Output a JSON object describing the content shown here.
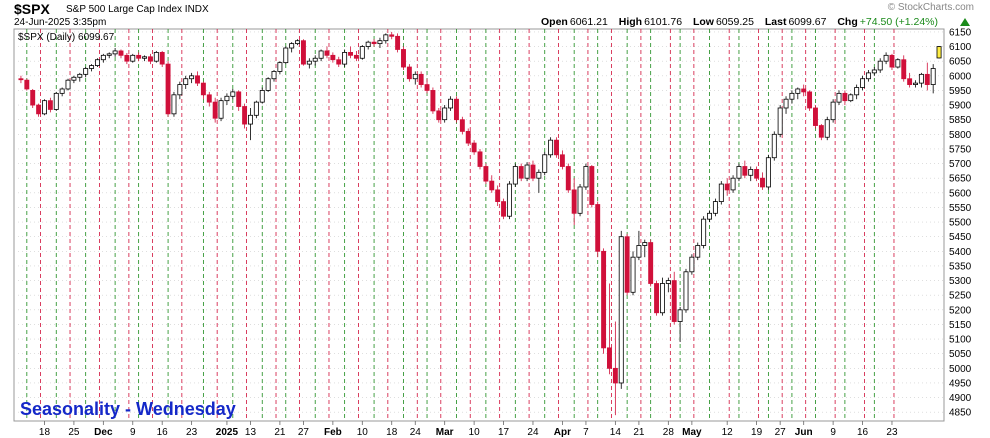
{
  "header": {
    "symbol": "$SPX",
    "name": "S&P 500 Large Cap Index",
    "exchange": "INDX",
    "date": "24-Jun-2025 3:35pm",
    "brand": "© StockCharts.com",
    "open_label": "Open",
    "open": "6061.21",
    "high_label": "High",
    "high": "6101.76",
    "low_label": "Low",
    "low": "6059.25",
    "last_label": "Last",
    "last": "6099.67",
    "chg_label": "Chg",
    "chg": "+74.50 (+1.24%)"
  },
  "legend": {
    "label": "$SPX (Daily) 6099.67"
  },
  "overlay": {
    "title": "Seasonality - Wednesday"
  },
  "colors": {
    "up": "#000000",
    "down": "#d0103a",
    "green_line": "#1a8a1a",
    "red_line": "#d0103a",
    "grid": "#cccccc",
    "title": "#1428c8",
    "last_box": "#ffee44"
  },
  "chart_data": {
    "type": "candlestick",
    "title": "",
    "xlabel": "",
    "ylabel": "",
    "ylim": [
      4820,
      6160
    ],
    "y_ticks": [
      4850,
      4900,
      4950,
      5000,
      5050,
      5100,
      5150,
      5200,
      5250,
      5300,
      5350,
      5400,
      5450,
      5500,
      5550,
      5600,
      5650,
      5700,
      5750,
      5800,
      5850,
      5900,
      5950,
      6000,
      6050,
      6100,
      6150
    ],
    "x_labels": [
      {
        "label": "18",
        "bold": false,
        "i": 4
      },
      {
        "label": "25",
        "bold": false,
        "i": 9
      },
      {
        "label": "Dec",
        "bold": true,
        "i": 14
      },
      {
        "label": "9",
        "bold": false,
        "i": 19
      },
      {
        "label": "16",
        "bold": false,
        "i": 24
      },
      {
        "label": "23",
        "bold": false,
        "i": 29
      },
      {
        "label": "2025",
        "bold": true,
        "i": 35
      },
      {
        "label": "13",
        "bold": false,
        "i": 39
      },
      {
        "label": "21",
        "bold": false,
        "i": 44
      },
      {
        "label": "27",
        "bold": false,
        "i": 48
      },
      {
        "label": "Feb",
        "bold": true,
        "i": 53
      },
      {
        "label": "10",
        "bold": false,
        "i": 58
      },
      {
        "label": "18",
        "bold": false,
        "i": 63
      },
      {
        "label": "24",
        "bold": false,
        "i": 67
      },
      {
        "label": "Mar",
        "bold": true,
        "i": 72
      },
      {
        "label": "10",
        "bold": false,
        "i": 77
      },
      {
        "label": "17",
        "bold": false,
        "i": 82
      },
      {
        "label": "24",
        "bold": false,
        "i": 87
      },
      {
        "label": "Apr",
        "bold": true,
        "i": 92
      },
      {
        "label": "7",
        "bold": false,
        "i": 96
      },
      {
        "label": "14",
        "bold": false,
        "i": 101
      },
      {
        "label": "21",
        "bold": false,
        "i": 105
      },
      {
        "label": "28",
        "bold": false,
        "i": 110
      },
      {
        "label": "May",
        "bold": true,
        "i": 114
      },
      {
        "label": "12",
        "bold": false,
        "i": 120
      },
      {
        "label": "19",
        "bold": false,
        "i": 125
      },
      {
        "label": "27",
        "bold": false,
        "i": 129
      },
      {
        "label": "Jun",
        "bold": true,
        "i": 133
      },
      {
        "label": "9",
        "bold": false,
        "i": 138
      },
      {
        "label": "16",
        "bold": false,
        "i": 143
      },
      {
        "label": "23",
        "bold": false,
        "i": 148
      }
    ],
    "green_lines": [
      1,
      6,
      11,
      16,
      20,
      25,
      31,
      36,
      41,
      45,
      50,
      55,
      60,
      65,
      69,
      74,
      79,
      84,
      89,
      94,
      98,
      103,
      107,
      112,
      117,
      122,
      127,
      131,
      135,
      140,
      145
    ],
    "red_lines": [
      3,
      8,
      13,
      18,
      22,
      27,
      33,
      38,
      43,
      47,
      52,
      57,
      62,
      67,
      71,
      76,
      81,
      86,
      91,
      96,
      100,
      105,
      110,
      114,
      120,
      125,
      129,
      133,
      138,
      143,
      148
    ],
    "series": [
      {
        "name": "$SPX",
        "type": "candlestick",
        "values": [
          [
            5990,
            6000,
            5975,
            5987
          ],
          [
            5985,
            5990,
            5950,
            5955
          ],
          [
            5950,
            5955,
            5890,
            5900
          ],
          [
            5900,
            5905,
            5860,
            5870
          ],
          [
            5870,
            5920,
            5865,
            5915
          ],
          [
            5915,
            5925,
            5875,
            5885
          ],
          [
            5885,
            5945,
            5880,
            5940
          ],
          [
            5940,
            5960,
            5930,
            5955
          ],
          [
            5955,
            5990,
            5950,
            5985
          ],
          [
            5985,
            6000,
            5975,
            5995
          ],
          [
            5995,
            6010,
            5980,
            6005
          ],
          [
            6005,
            6030,
            5995,
            6025
          ],
          [
            6025,
            6040,
            6015,
            6035
          ],
          [
            6035,
            6060,
            6030,
            6055
          ],
          [
            6055,
            6075,
            6045,
            6070
          ],
          [
            6070,
            6080,
            6060,
            6075
          ],
          [
            6075,
            6095,
            6065,
            6085
          ],
          [
            6085,
            6090,
            6060,
            6070
          ],
          [
            6070,
            6078,
            6040,
            6050
          ],
          [
            6050,
            6075,
            6045,
            6070
          ],
          [
            6070,
            6080,
            6050,
            6060
          ],
          [
            6060,
            6070,
            6050,
            6065
          ],
          [
            6065,
            6075,
            6040,
            6050
          ],
          [
            6050,
            6085,
            6045,
            6080
          ],
          [
            6080,
            6085,
            6030,
            6040
          ],
          [
            6040,
            6050,
            5860,
            5870
          ],
          [
            5870,
            5945,
            5860,
            5935
          ],
          [
            5935,
            5980,
            5920,
            5970
          ],
          [
            5970,
            6000,
            5955,
            5990
          ],
          [
            5990,
            6010,
            5975,
            6000
          ],
          [
            6000,
            6015,
            5965,
            5975
          ],
          [
            5975,
            5980,
            5920,
            5935
          ],
          [
            5935,
            5945,
            5895,
            5910
          ],
          [
            5910,
            5925,
            5840,
            5855
          ],
          [
            5855,
            5925,
            5845,
            5915
          ],
          [
            5915,
            5940,
            5900,
            5930
          ],
          [
            5930,
            5955,
            5920,
            5945
          ],
          [
            5945,
            5950,
            5880,
            5895
          ],
          [
            5895,
            5905,
            5820,
            5835
          ],
          [
            5835,
            5890,
            5780,
            5865
          ],
          [
            5865,
            5915,
            5855,
            5910
          ],
          [
            5910,
            5960,
            5905,
            5950
          ],
          [
            5950,
            5995,
            5945,
            5990
          ],
          [
            5990,
            6020,
            5980,
            6015
          ],
          [
            6015,
            6050,
            6005,
            6045
          ],
          [
            6045,
            6100,
            6040,
            6095
          ],
          [
            6095,
            6115,
            6080,
            6110
          ],
          [
            6110,
            6125,
            6105,
            6120
          ],
          [
            6120,
            6125,
            6035,
            6040
          ],
          [
            6040,
            6060,
            6025,
            6050
          ],
          [
            6050,
            6070,
            6035,
            6060
          ],
          [
            6060,
            6090,
            6050,
            6085
          ],
          [
            6085,
            6100,
            6060,
            6070
          ],
          [
            6070,
            6080,
            6045,
            6055
          ],
          [
            6055,
            6065,
            6030,
            6040
          ],
          [
            6040,
            6090,
            6030,
            6080
          ],
          [
            6080,
            6100,
            6060,
            6070
          ],
          [
            6070,
            6085,
            6050,
            6060
          ],
          [
            6060,
            6105,
            6055,
            6100
          ],
          [
            6100,
            6120,
            6090,
            6115
          ],
          [
            6115,
            6125,
            6100,
            6110
          ],
          [
            6110,
            6130,
            6095,
            6120
          ],
          [
            6120,
            6145,
            6110,
            6140
          ],
          [
            6140,
            6150,
            6125,
            6135
          ],
          [
            6135,
            6145,
            6080,
            6090
          ],
          [
            6090,
            6100,
            6020,
            6030
          ],
          [
            6030,
            6040,
            5980,
            5990
          ],
          [
            5990,
            6015,
            5970,
            6005
          ],
          [
            6005,
            6015,
            5960,
            5970
          ],
          [
            5970,
            5990,
            5940,
            5950
          ],
          [
            5950,
            5960,
            5870,
            5880
          ],
          [
            5880,
            5890,
            5840,
            5850
          ],
          [
            5850,
            5900,
            5840,
            5890
          ],
          [
            5890,
            5930,
            5880,
            5920
          ],
          [
            5920,
            5930,
            5840,
            5850
          ],
          [
            5850,
            5860,
            5800,
            5810
          ],
          [
            5810,
            5820,
            5760,
            5770
          ],
          [
            5770,
            5780,
            5730,
            5740
          ],
          [
            5740,
            5750,
            5680,
            5690
          ],
          [
            5690,
            5700,
            5630,
            5640
          ],
          [
            5640,
            5660,
            5600,
            5610
          ],
          [
            5610,
            5625,
            5555,
            5570
          ],
          [
            5570,
            5580,
            5510,
            5520
          ],
          [
            5520,
            5640,
            5510,
            5630
          ],
          [
            5630,
            5700,
            5620,
            5690
          ],
          [
            5690,
            5700,
            5640,
            5650
          ],
          [
            5650,
            5705,
            5640,
            5695
          ],
          [
            5695,
            5710,
            5640,
            5650
          ],
          [
            5650,
            5680,
            5600,
            5670
          ],
          [
            5670,
            5740,
            5660,
            5730
          ],
          [
            5730,
            5790,
            5720,
            5780
          ],
          [
            5780,
            5790,
            5720,
            5730
          ],
          [
            5730,
            5745,
            5680,
            5690
          ],
          [
            5690,
            5700,
            5600,
            5610
          ],
          [
            5610,
            5650,
            5490,
            5530
          ],
          [
            5530,
            5630,
            5520,
            5620
          ],
          [
            5620,
            5700,
            5610,
            5690
          ],
          [
            5690,
            5695,
            5550,
            5560
          ],
          [
            5560,
            5570,
            5380,
            5400
          ],
          [
            5400,
            5410,
            5050,
            5070
          ],
          [
            5070,
            5290,
            4980,
            5000
          ],
          [
            5000,
            5160,
            4840,
            4950
          ],
          [
            4950,
            5470,
            4930,
            5450
          ],
          [
            5450,
            5460,
            5250,
            5260
          ],
          [
            5260,
            5400,
            5250,
            5380
          ],
          [
            5380,
            5470,
            5370,
            5420
          ],
          [
            5420,
            5440,
            5380,
            5430
          ],
          [
            5430,
            5440,
            5280,
            5290
          ],
          [
            5290,
            5300,
            5180,
            5190
          ],
          [
            5190,
            5310,
            5180,
            5290
          ],
          [
            5290,
            5310,
            5260,
            5300
          ],
          [
            5300,
            5330,
            5150,
            5160
          ],
          [
            5160,
            5210,
            5090,
            5200
          ],
          [
            5200,
            5340,
            5190,
            5330
          ],
          [
            5330,
            5390,
            5320,
            5380
          ],
          [
            5380,
            5430,
            5370,
            5420
          ],
          [
            5420,
            5520,
            5410,
            5510
          ],
          [
            5510,
            5540,
            5500,
            5530
          ],
          [
            5530,
            5580,
            5520,
            5570
          ],
          [
            5570,
            5640,
            5560,
            5630
          ],
          [
            5630,
            5650,
            5590,
            5610
          ],
          [
            5610,
            5660,
            5600,
            5650
          ],
          [
            5650,
            5700,
            5640,
            5690
          ],
          [
            5690,
            5710,
            5650,
            5660
          ],
          [
            5660,
            5690,
            5640,
            5680
          ],
          [
            5680,
            5690,
            5640,
            5650
          ],
          [
            5650,
            5670,
            5610,
            5620
          ],
          [
            5620,
            5730,
            5610,
            5720
          ],
          [
            5720,
            5810,
            5710,
            5800
          ],
          [
            5800,
            5900,
            5790,
            5890
          ],
          [
            5890,
            5930,
            5870,
            5920
          ],
          [
            5920,
            5950,
            5905,
            5940
          ],
          [
            5940,
            5960,
            5920,
            5955
          ],
          [
            5955,
            5970,
            5930,
            5945
          ],
          [
            5945,
            5950,
            5880,
            5890
          ],
          [
            5890,
            5900,
            5820,
            5830
          ],
          [
            5830,
            5835,
            5780,
            5790
          ],
          [
            5790,
            5860,
            5780,
            5850
          ],
          [
            5850,
            5920,
            5840,
            5910
          ],
          [
            5910,
            5950,
            5900,
            5940
          ],
          [
            5940,
            5950,
            5900,
            5915
          ],
          [
            5915,
            5940,
            5910,
            5935
          ],
          [
            5935,
            5970,
            5920,
            5960
          ],
          [
            5960,
            6000,
            5950,
            5990
          ],
          [
            5990,
            6020,
            5980,
            6010
          ],
          [
            6010,
            6030,
            6000,
            6020
          ],
          [
            6020,
            6060,
            6010,
            6050
          ],
          [
            6050,
            6080,
            6040,
            6070
          ],
          [
            6070,
            6075,
            6020,
            6030
          ],
          [
            6030,
            6060,
            6025,
            6055
          ],
          [
            6055,
            6070,
            5980,
            5990
          ],
          [
            5990,
            6010,
            5960,
            5970
          ],
          [
            5970,
            5985,
            5960,
            5975
          ],
          [
            5975,
            6010,
            5960,
            6005
          ],
          [
            6005,
            6045,
            5950,
            5970
          ],
          [
            5970,
            6040,
            5940,
            6025
          ],
          [
            6061,
            6102,
            6059,
            6100
          ]
        ]
      }
    ]
  }
}
